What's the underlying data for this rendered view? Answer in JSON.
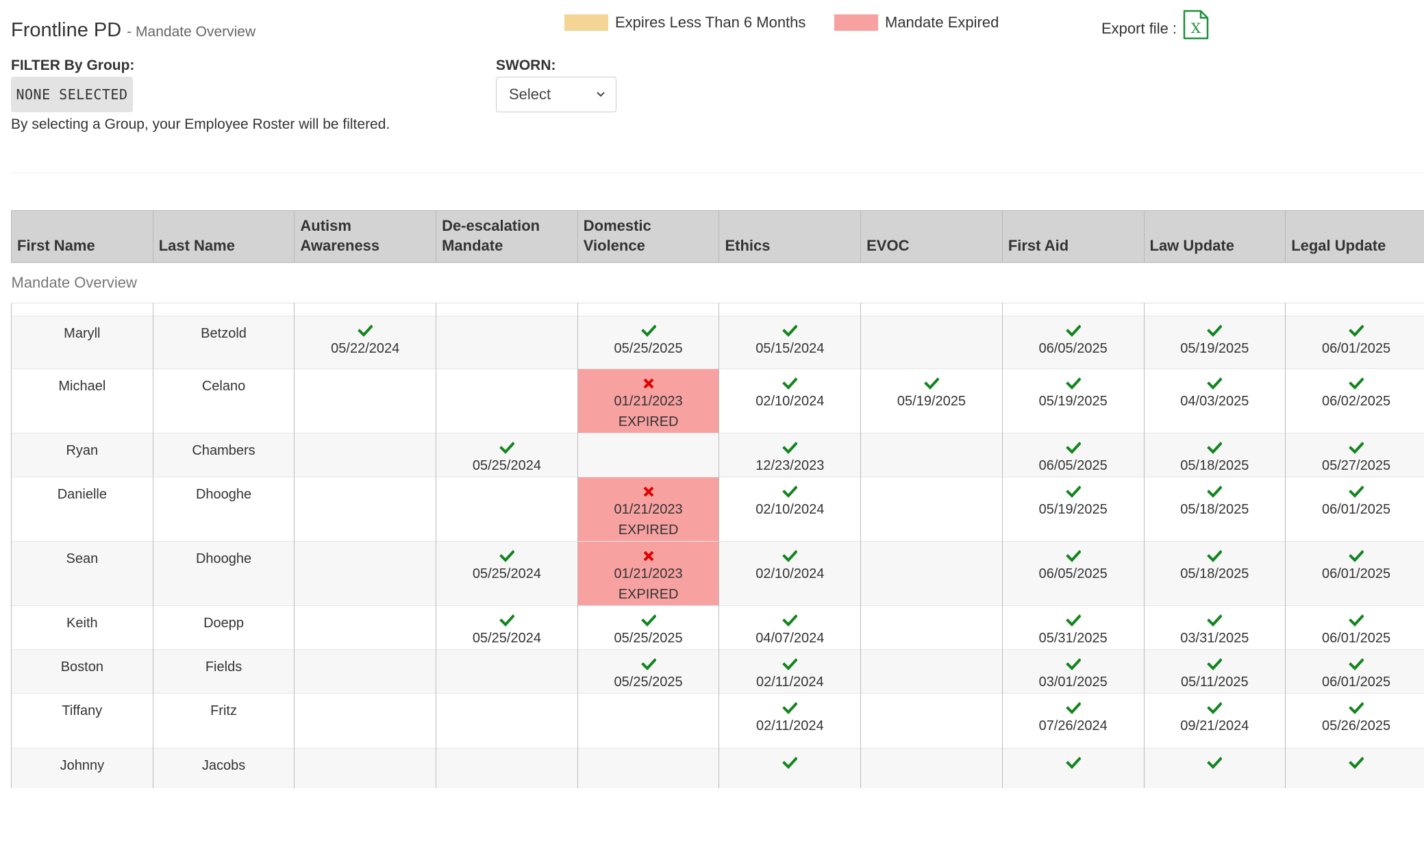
{
  "header": {
    "title": "Frontline PD",
    "subtitle": "- Mandate Overview",
    "legend": [
      {
        "label": "Expires Less Than 6 Months",
        "color": "#f4d595"
      },
      {
        "label": "Mandate Expired",
        "color": "#f7a1a1"
      }
    ],
    "export_label": "Export file :",
    "export_icon": "excel-file-icon"
  },
  "filters": {
    "group_label": "FILTER By Group:",
    "group_button": "NONE SELECTED",
    "group_note": "By selecting a Group, your Employee Roster will be filtered.",
    "sworn_label": "SWORN:",
    "sworn_value": "Select"
  },
  "table": {
    "caption": "Mandate Overview",
    "expired_label": "EXPIRED",
    "columns": [
      "First Name",
      "Last Name",
      "Autism Awareness",
      "De-escalation Mandate",
      "Domestic Violence",
      "Ethics",
      "EVOC",
      "First Aid",
      "Law Update",
      "Legal Update"
    ],
    "rows": [
      {
        "first": "Maryll",
        "last": "Betzold",
        "cells": [
          {
            "date": "05/22/2024",
            "status": "ok"
          },
          null,
          {
            "date": "05/25/2025",
            "status": "ok"
          },
          {
            "date": "05/15/2024",
            "status": "ok"
          },
          null,
          {
            "date": "06/05/2025",
            "status": "ok"
          },
          {
            "date": "05/19/2025",
            "status": "ok"
          },
          {
            "date": "06/01/2025",
            "status": "ok"
          }
        ]
      },
      {
        "first": "Michael",
        "last": "Celano",
        "cells": [
          null,
          null,
          {
            "date": "01/21/2023",
            "status": "expired"
          },
          {
            "date": "02/10/2024",
            "status": "ok"
          },
          {
            "date": "05/19/2025",
            "status": "ok"
          },
          {
            "date": "05/19/2025",
            "status": "ok"
          },
          {
            "date": "04/03/2025",
            "status": "ok"
          },
          {
            "date": "06/02/2025",
            "status": "ok"
          }
        ]
      },
      {
        "first": "Ryan",
        "last": "Chambers",
        "cells": [
          null,
          {
            "date": "05/25/2024",
            "status": "ok"
          },
          null,
          {
            "date": "12/23/2023",
            "status": "ok"
          },
          null,
          {
            "date": "06/05/2025",
            "status": "ok"
          },
          {
            "date": "05/18/2025",
            "status": "ok"
          },
          {
            "date": "05/27/2025",
            "status": "ok"
          }
        ]
      },
      {
        "first": "Danielle",
        "last": "Dhooghe",
        "cells": [
          null,
          null,
          {
            "date": "01/21/2023",
            "status": "expired"
          },
          {
            "date": "02/10/2024",
            "status": "ok"
          },
          null,
          {
            "date": "05/19/2025",
            "status": "ok"
          },
          {
            "date": "05/18/2025",
            "status": "ok"
          },
          {
            "date": "06/01/2025",
            "status": "ok"
          }
        ]
      },
      {
        "first": "Sean",
        "last": "Dhooghe",
        "cells": [
          null,
          {
            "date": "05/25/2024",
            "status": "ok"
          },
          {
            "date": "01/21/2023",
            "status": "expired"
          },
          {
            "date": "02/10/2024",
            "status": "ok"
          },
          null,
          {
            "date": "06/05/2025",
            "status": "ok"
          },
          {
            "date": "05/18/2025",
            "status": "ok"
          },
          {
            "date": "06/01/2025",
            "status": "ok"
          }
        ]
      },
      {
        "first": "Keith",
        "last": "Doepp",
        "cells": [
          null,
          {
            "date": "05/25/2024",
            "status": "ok"
          },
          {
            "date": "05/25/2025",
            "status": "ok"
          },
          {
            "date": "04/07/2024",
            "status": "ok"
          },
          null,
          {
            "date": "05/31/2025",
            "status": "ok"
          },
          {
            "date": "03/31/2025",
            "status": "ok"
          },
          {
            "date": "06/01/2025",
            "status": "ok"
          }
        ]
      },
      {
        "first": "Boston",
        "last": "Fields",
        "cells": [
          null,
          null,
          {
            "date": "05/25/2025",
            "status": "ok"
          },
          {
            "date": "02/11/2024",
            "status": "ok"
          },
          null,
          {
            "date": "03/01/2025",
            "status": "ok"
          },
          {
            "date": "05/11/2025",
            "status": "ok"
          },
          {
            "date": "06/01/2025",
            "status": "ok"
          }
        ]
      },
      {
        "first": "Tiffany",
        "last": "Fritz",
        "cells": [
          null,
          null,
          null,
          {
            "date": "02/11/2024",
            "status": "ok"
          },
          null,
          {
            "date": "07/26/2024",
            "status": "ok"
          },
          {
            "date": "09/21/2024",
            "status": "ok"
          },
          {
            "date": "05/26/2025",
            "status": "ok"
          }
        ]
      },
      {
        "first": "Johnny",
        "last": "Jacobs",
        "cells": [
          null,
          null,
          null,
          {
            "date": "",
            "status": "ok"
          },
          null,
          {
            "date": "",
            "status": "ok"
          },
          {
            "date": "",
            "status": "ok"
          },
          {
            "date": "",
            "status": "ok"
          }
        ]
      }
    ]
  }
}
